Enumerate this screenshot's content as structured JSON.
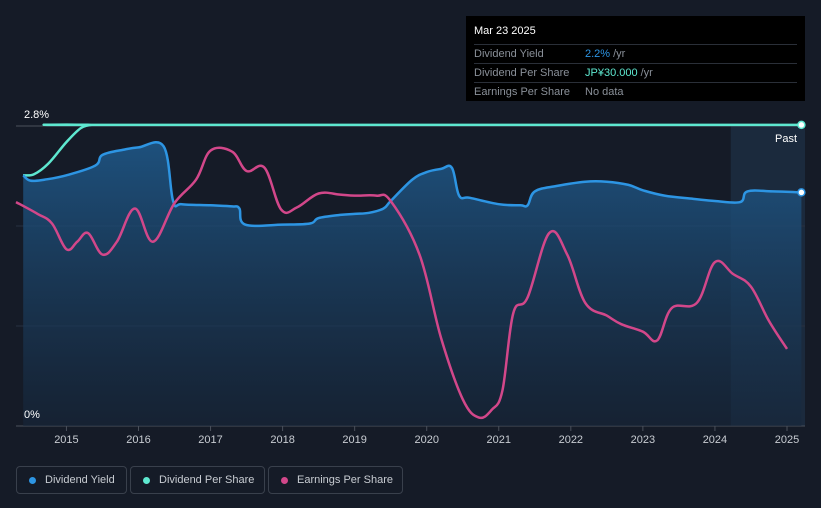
{
  "tooltip": {
    "date": "Mar 23 2025",
    "rows": [
      {
        "label": "Dividend Yield",
        "value": "2.2%",
        "unit": "/yr",
        "color": "#2d95e3"
      },
      {
        "label": "Dividend Per Share",
        "value": "JP¥30.000",
        "unit": "/yr",
        "color": "#5ee8d0"
      },
      {
        "label": "Earnings Per Share",
        "value": "No data",
        "unit": "",
        "color": "#8a9099"
      }
    ]
  },
  "legend": [
    {
      "label": "Dividend Yield",
      "color": "#2d95e3"
    },
    {
      "label": "Dividend Per Share",
      "color": "#5ee8d0"
    },
    {
      "label": "Earnings Per Share",
      "color": "#d2478a"
    }
  ],
  "chart_data": {
    "type": "line",
    "ytick_labels": [
      "2.8%",
      "0%"
    ],
    "ylim": [
      0,
      2.8
    ],
    "xlim": [
      2014.3,
      2025.25
    ],
    "xticks": [
      2015,
      2016,
      2017,
      2018,
      2019,
      2020,
      2021,
      2022,
      2023,
      2024,
      2025
    ],
    "past_label": "Past",
    "past_start": 2024.22,
    "colors": {
      "yield": "#2d95e3",
      "dps": "#5ee8d0",
      "eps": "#d2478a"
    },
    "series": [
      {
        "key": "yield",
        "name": "Dividend Yield",
        "points": [
          [
            2014.4,
            2.34
          ],
          [
            2014.5,
            2.29
          ],
          [
            2014.7,
            2.3
          ],
          [
            2015.0,
            2.34
          ],
          [
            2015.4,
            2.43
          ],
          [
            2015.5,
            2.53
          ],
          [
            2015.8,
            2.58
          ],
          [
            2016.0,
            2.6
          ],
          [
            2016.35,
            2.61
          ],
          [
            2016.48,
            2.1
          ],
          [
            2016.6,
            2.07
          ],
          [
            2017.0,
            2.06
          ],
          [
            2017.3,
            2.05
          ],
          [
            2017.4,
            2.03
          ],
          [
            2017.48,
            1.88
          ],
          [
            2018.0,
            1.88
          ],
          [
            2018.38,
            1.89
          ],
          [
            2018.5,
            1.94
          ],
          [
            2018.8,
            1.97
          ],
          [
            2019.0,
            1.98
          ],
          [
            2019.2,
            1.99
          ],
          [
            2019.4,
            2.03
          ],
          [
            2019.5,
            2.1
          ],
          [
            2019.8,
            2.3
          ],
          [
            2020.0,
            2.37
          ],
          [
            2020.2,
            2.4
          ],
          [
            2020.35,
            2.41
          ],
          [
            2020.45,
            2.15
          ],
          [
            2020.6,
            2.13
          ],
          [
            2021.0,
            2.07
          ],
          [
            2021.3,
            2.06
          ],
          [
            2021.4,
            2.06
          ],
          [
            2021.5,
            2.19
          ],
          [
            2021.8,
            2.24
          ],
          [
            2022.2,
            2.28
          ],
          [
            2022.5,
            2.28
          ],
          [
            2022.8,
            2.25
          ],
          [
            2023.0,
            2.2
          ],
          [
            2023.3,
            2.15
          ],
          [
            2023.7,
            2.12
          ],
          [
            2024.0,
            2.1
          ],
          [
            2024.35,
            2.09
          ],
          [
            2024.45,
            2.19
          ],
          [
            2024.8,
            2.19
          ],
          [
            2025.2,
            2.18
          ]
        ]
      },
      {
        "key": "dps",
        "name": "Dividend Per Share",
        "points": [
          [
            2014.4,
            2.34
          ],
          [
            2014.55,
            2.35
          ],
          [
            2014.75,
            2.45
          ],
          [
            2015.0,
            2.65
          ],
          [
            2015.2,
            2.78
          ],
          [
            2015.35,
            2.81
          ],
          [
            2015.5,
            2.81
          ],
          [
            2025.2,
            2.81
          ]
        ]
      },
      {
        "key": "eps",
        "name": "Earnings Per Share",
        "points": [
          [
            2014.3,
            2.09
          ],
          [
            2014.6,
            1.98
          ],
          [
            2014.8,
            1.89
          ],
          [
            2015.0,
            1.65
          ],
          [
            2015.15,
            1.72
          ],
          [
            2015.3,
            1.8
          ],
          [
            2015.5,
            1.6
          ],
          [
            2015.7,
            1.72
          ],
          [
            2015.95,
            2.03
          ],
          [
            2016.2,
            1.72
          ],
          [
            2016.5,
            2.08
          ],
          [
            2016.8,
            2.3
          ],
          [
            2017.0,
            2.57
          ],
          [
            2017.3,
            2.56
          ],
          [
            2017.5,
            2.38
          ],
          [
            2017.75,
            2.41
          ],
          [
            2017.98,
            2.02
          ],
          [
            2018.2,
            2.04
          ],
          [
            2018.5,
            2.17
          ],
          [
            2018.8,
            2.16
          ],
          [
            2019.0,
            2.15
          ],
          [
            2019.3,
            2.15
          ],
          [
            2019.5,
            2.1
          ],
          [
            2019.9,
            1.6
          ],
          [
            2020.2,
            0.82
          ],
          [
            2020.5,
            0.25
          ],
          [
            2020.72,
            0.08
          ],
          [
            2020.9,
            0.15
          ],
          [
            2021.05,
            0.33
          ],
          [
            2021.2,
            1.05
          ],
          [
            2021.4,
            1.2
          ],
          [
            2021.7,
            1.8
          ],
          [
            2021.95,
            1.6
          ],
          [
            2022.2,
            1.15
          ],
          [
            2022.5,
            1.03
          ],
          [
            2022.7,
            0.95
          ],
          [
            2023.0,
            0.88
          ],
          [
            2023.2,
            0.8
          ],
          [
            2023.4,
            1.1
          ],
          [
            2023.75,
            1.15
          ],
          [
            2024.0,
            1.53
          ],
          [
            2024.25,
            1.42
          ],
          [
            2024.5,
            1.3
          ],
          [
            2024.75,
            0.98
          ],
          [
            2025.0,
            0.72
          ]
        ]
      }
    ]
  }
}
